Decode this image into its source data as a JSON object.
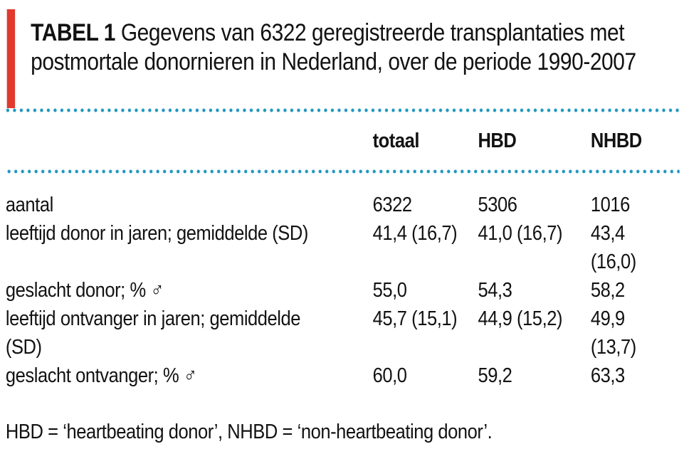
{
  "colors": {
    "accent": "#e03a2d",
    "dot": "#2097c2",
    "ink": "#121212"
  },
  "title": {
    "label": "TABEL 1",
    "text": " Gegevens van 6322 geregistreerde transplantaties met\npostmortale donornieren in Nederland, over de periode 1990-2007"
  },
  "table": {
    "columns": [
      "totaal",
      "HBD",
      "NHBD"
    ],
    "rows": [
      {
        "label": "aantal",
        "values": [
          "6322",
          "5306",
          "1016"
        ]
      },
      {
        "label": "leeftijd donor in jaren; gemiddelde (SD)",
        "values": [
          "41,4 (16,7)",
          "41,0 (16,7)",
          "43,4 (16,0)"
        ]
      },
      {
        "label": "geslacht donor; % ♂",
        "values": [
          "55,0",
          "54,3",
          "58,2"
        ]
      },
      {
        "label": "leeftijd ontvanger in jaren; gemiddelde\n(SD)",
        "values": [
          "45,7 (15,1)",
          "44,9 (15,2)",
          "49,9 (13,7)"
        ]
      },
      {
        "label": "geslacht ontvanger; % ♂",
        "values": [
          "60,0",
          "59,2",
          "63,3"
        ]
      }
    ]
  },
  "footnote": "HBD = ‘heartbeating donor’, NHBD = ‘non-heartbeating donor’."
}
